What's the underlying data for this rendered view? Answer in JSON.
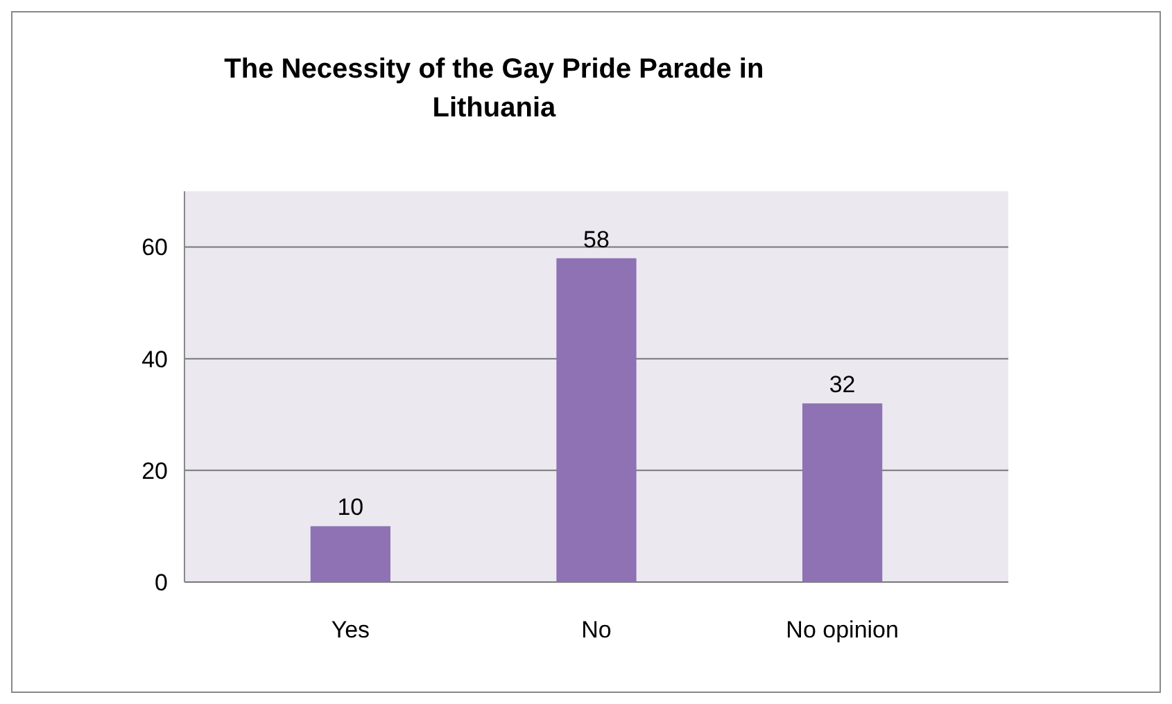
{
  "chart_data": {
    "type": "bar",
    "title": "The Necessity of the Gay Pride Parade in Lithuania",
    "categories": [
      "Yes",
      "No",
      "No opinion"
    ],
    "values": [
      10,
      58,
      32
    ],
    "color": "#8e72b4",
    "ylim": [
      0,
      70
    ],
    "yticks": [
      0,
      20,
      40,
      60
    ],
    "grid": "y",
    "data_labels": true
  }
}
